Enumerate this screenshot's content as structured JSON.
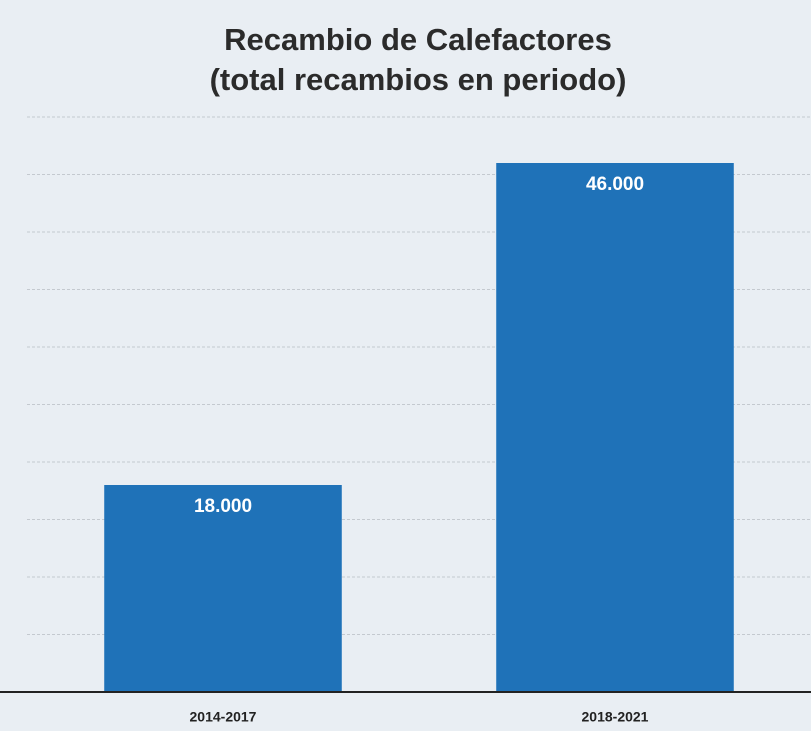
{
  "chart_data": {
    "type": "bar",
    "title": "Recambio de Calefactores",
    "subtitle": "(total recambios en periodo)",
    "categories": [
      "2014-2017",
      "2018-2021"
    ],
    "values": [
      18000,
      46000
    ],
    "value_labels": [
      "18.000",
      "46.000"
    ],
    "color": "#1f72b8",
    "ylim": [
      0,
      50000
    ],
    "yticks": [
      0,
      5000,
      10000,
      15000,
      20000,
      25000,
      30000,
      35000,
      40000,
      45000,
      50000
    ],
    "grid": true
  }
}
